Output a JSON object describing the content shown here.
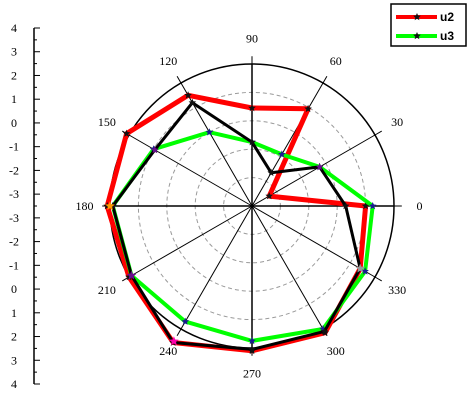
{
  "chart_data": {
    "type": "line",
    "subtype": "polar",
    "title": "",
    "angle_ticks": [
      "0",
      "30",
      "60",
      "90",
      "120",
      "150",
      "180",
      "210",
      "240",
      "270",
      "300",
      "330"
    ],
    "radial_axis_ticks": [
      "4",
      "3",
      "2",
      "1",
      "0",
      "-1",
      "-2",
      "-3",
      "-3",
      "-2",
      "-1",
      "0",
      "1",
      "2",
      "3",
      "4"
    ],
    "radial_range": [
      -4,
      4
    ],
    "grid": true,
    "legend_position": "top-right",
    "series": [
      {
        "name": "u2",
        "color": "#ff0000",
        "marker": "star",
        "points": [
          {
            "angle": 0,
            "r": 0.8
          },
          {
            "angle": 30,
            "r": 0.14
          },
          {
            "angle": 60,
            "r": 0.79
          },
          {
            "angle": 90,
            "r": 0.69
          },
          {
            "angle": 120,
            "r": 0.9
          },
          {
            "angle": 150,
            "r": 1.02
          },
          {
            "angle": 180,
            "r": 1.02
          },
          {
            "angle": 210,
            "r": 1.0
          },
          {
            "angle": 240,
            "r": 1.11
          },
          {
            "angle": 270,
            "r": 1.02
          },
          {
            "angle": 300,
            "r": 1.03
          },
          {
            "angle": 330,
            "r": 0.88
          }
        ]
      },
      {
        "name": "u3",
        "color": "#00ff00",
        "marker": "star",
        "points": [
          {
            "angle": 0,
            "r": 0.85
          },
          {
            "angle": 30,
            "r": 0.55
          },
          {
            "angle": 60,
            "r": 0.42
          },
          {
            "angle": 90,
            "r": 0.45
          },
          {
            "angle": 120,
            "r": 0.6
          },
          {
            "angle": 150,
            "r": 0.8
          },
          {
            "angle": 180,
            "r": 0.98
          },
          {
            "angle": 210,
            "r": 0.98
          },
          {
            "angle": 240,
            "r": 0.94
          },
          {
            "angle": 270,
            "r": 0.95
          },
          {
            "angle": 300,
            "r": 1.0
          },
          {
            "angle": 330,
            "r": 0.92
          }
        ]
      },
      {
        "name": "",
        "color": "#000000",
        "marker": "star",
        "points": [
          {
            "angle": 0,
            "r": 0.66
          },
          {
            "angle": 30,
            "r": 0.55
          },
          {
            "angle": 60,
            "r": 0.27
          },
          {
            "angle": 90,
            "r": 0.45
          },
          {
            "angle": 120,
            "r": 0.84
          },
          {
            "angle": 150,
            "r": 0.79
          },
          {
            "angle": 180,
            "r": 0.98
          },
          {
            "angle": 210,
            "r": 0.98
          },
          {
            "angle": 240,
            "r": 1.11
          },
          {
            "angle": 270,
            "r": 1.01
          },
          {
            "angle": 300,
            "r": 1.02
          },
          {
            "angle": 330,
            "r": 0.88
          }
        ]
      }
    ],
    "overlay_colors": {
      "dark": "#111111",
      "purple": "#6a0d8f",
      "magenta": "#ff00aa",
      "orange": "#ff9900",
      "gray": "#999999"
    }
  }
}
